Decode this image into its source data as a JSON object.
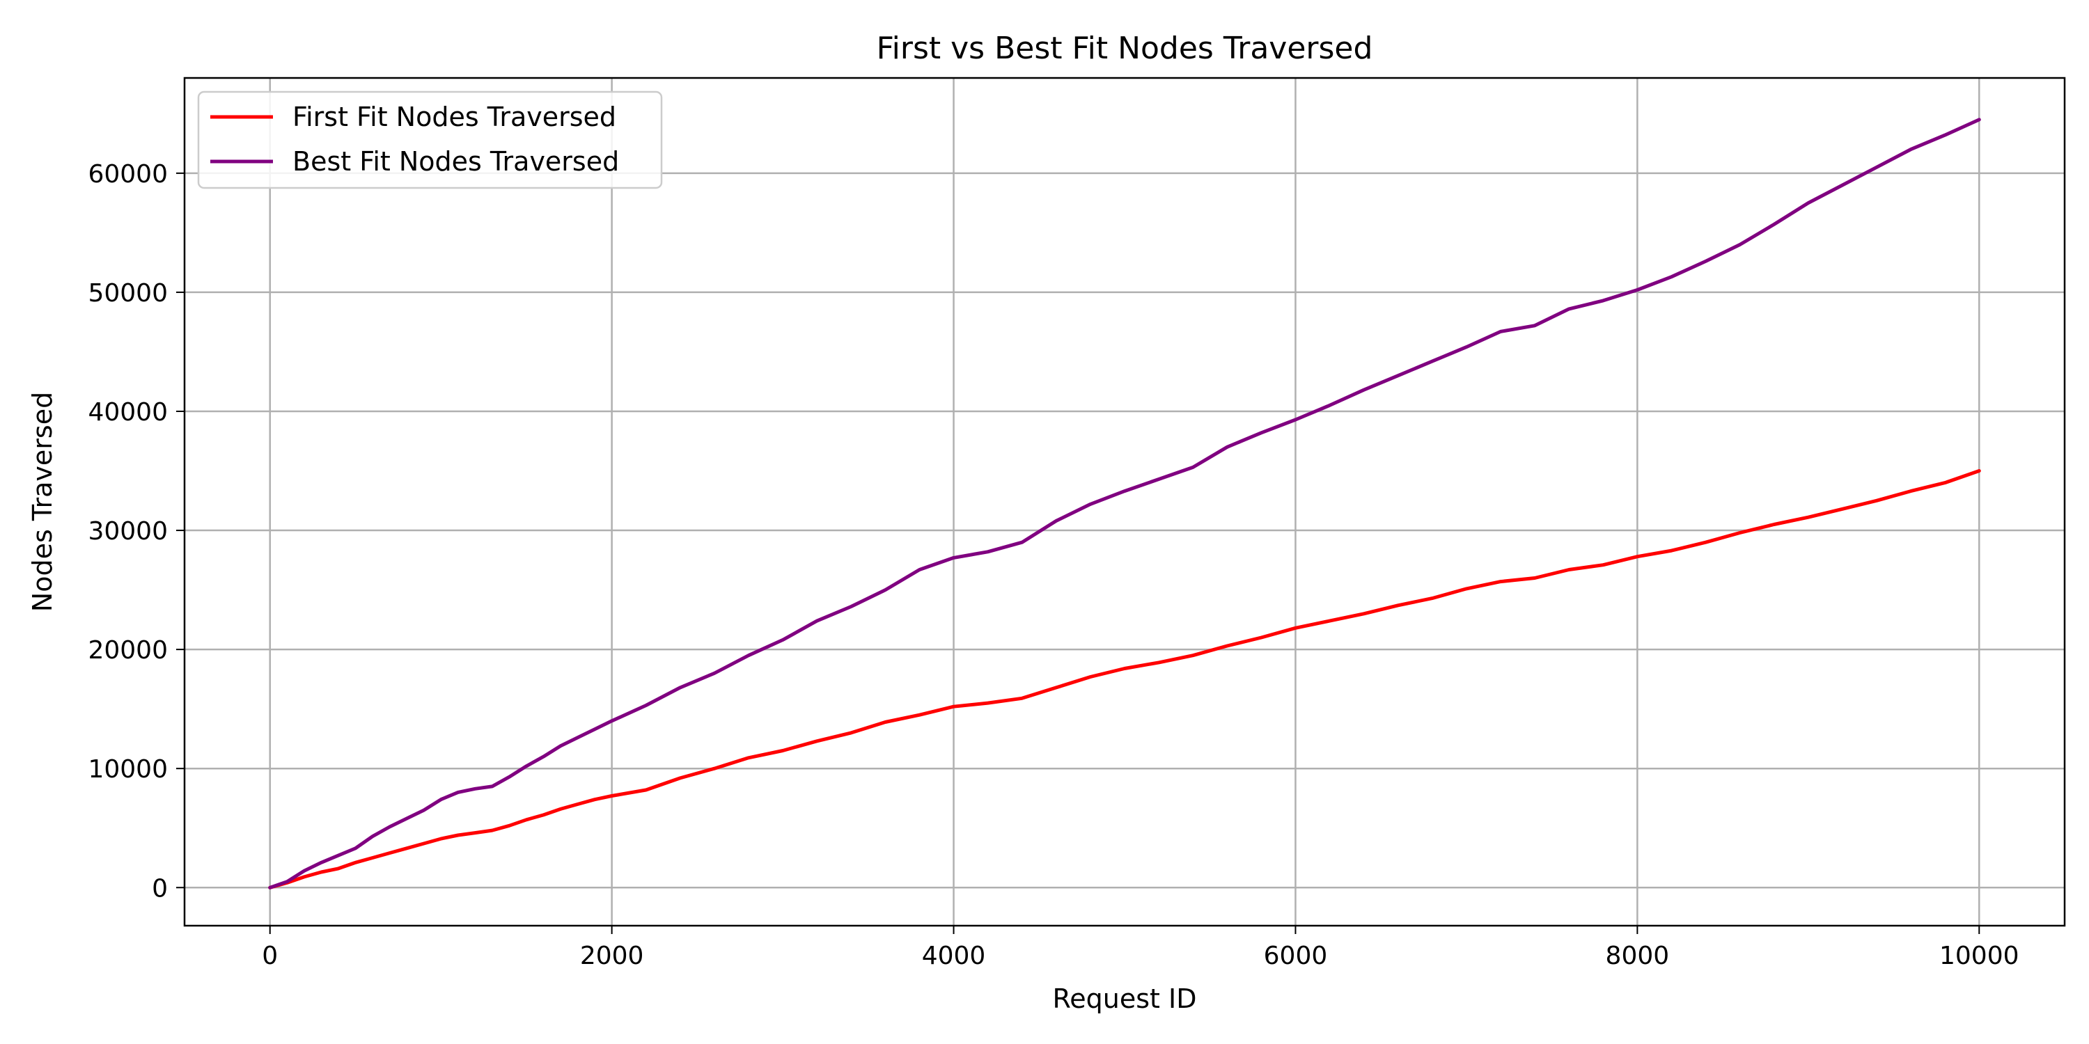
{
  "chart_data": {
    "type": "line",
    "title": "First vs Best Fit Nodes Traversed",
    "xlabel": "Request ID",
    "ylabel": "Nodes Traversed",
    "xlim": [
      -500,
      10500
    ],
    "ylim": [
      -3200,
      68000
    ],
    "xticks": [
      0,
      2000,
      4000,
      6000,
      8000,
      10000
    ],
    "yticks": [
      0,
      10000,
      20000,
      30000,
      40000,
      50000,
      60000
    ],
    "grid": true,
    "legend_position": "upper-left",
    "series": [
      {
        "name": "First Fit Nodes Traversed",
        "color": "#ff0000",
        "x": [
          0,
          100,
          200,
          300,
          400,
          500,
          600,
          700,
          800,
          900,
          1000,
          1100,
          1200,
          1300,
          1400,
          1500,
          1600,
          1700,
          1800,
          1900,
          2000,
          2200,
          2400,
          2600,
          2800,
          3000,
          3200,
          3400,
          3600,
          3800,
          4000,
          4200,
          4400,
          4600,
          4800,
          5000,
          5200,
          5400,
          5600,
          5800,
          6000,
          6200,
          6400,
          6600,
          6800,
          7000,
          7200,
          7400,
          7600,
          7800,
          8000,
          8200,
          8400,
          8600,
          8800,
          9000,
          9200,
          9400,
          9600,
          9800,
          10000
        ],
        "y": [
          0,
          400,
          900,
          1300,
          1600,
          2100,
          2500,
          2900,
          3300,
          3700,
          4100,
          4400,
          4600,
          4800,
          5200,
          5700,
          6100,
          6600,
          7000,
          7400,
          7700,
          8200,
          9200,
          10000,
          10900,
          11500,
          12300,
          13000,
          13900,
          14500,
          15200,
          15500,
          15900,
          16800,
          17700,
          18400,
          18900,
          19500,
          20300,
          21000,
          21800,
          22400,
          23000,
          23700,
          24300,
          25100,
          25700,
          26000,
          26700,
          27100,
          27800,
          28300,
          29000,
          29800,
          30500,
          31100,
          31800,
          32500,
          33300,
          34000,
          35000
        ]
      },
      {
        "name": "Best Fit Nodes Traversed",
        "color": "#800080",
        "x": [
          0,
          100,
          200,
          300,
          400,
          500,
          600,
          700,
          800,
          900,
          1000,
          1100,
          1200,
          1300,
          1400,
          1500,
          1600,
          1700,
          1800,
          1900,
          2000,
          2200,
          2400,
          2600,
          2800,
          3000,
          3200,
          3400,
          3600,
          3800,
          4000,
          4200,
          4400,
          4600,
          4800,
          5000,
          5200,
          5400,
          5600,
          5800,
          6000,
          6200,
          6400,
          6600,
          6800,
          7000,
          7200,
          7400,
          7600,
          7800,
          8000,
          8200,
          8400,
          8600,
          8800,
          9000,
          9200,
          9400,
          9600,
          9800,
          10000
        ],
        "y": [
          0,
          500,
          1400,
          2100,
          2700,
          3300,
          4300,
          5100,
          5800,
          6500,
          7400,
          8000,
          8300,
          8500,
          9300,
          10200,
          11000,
          11900,
          12600,
          13300,
          14000,
          15300,
          16800,
          18000,
          19500,
          20800,
          22400,
          23600,
          25000,
          26700,
          27700,
          28200,
          29000,
          30800,
          32200,
          33300,
          34300,
          35300,
          37000,
          38200,
          39300,
          40500,
          41800,
          43000,
          44200,
          45400,
          46700,
          47200,
          48600,
          49300,
          50200,
          51300,
          52600,
          54000,
          55700,
          57500,
          59000,
          60500,
          62000,
          63200,
          64500
        ]
      }
    ]
  }
}
